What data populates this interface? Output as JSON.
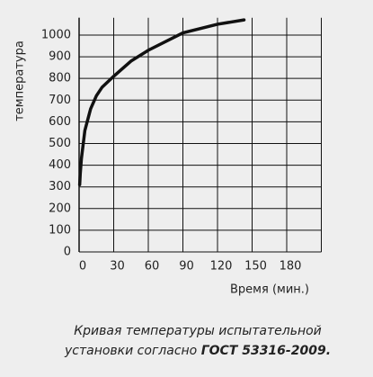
{
  "chart_data": {
    "type": "line",
    "y_label": "температура",
    "x_label": "Время (мин.)",
    "caption": {
      "line1": "Кривая температуры испытательной",
      "line2": "установки согласно ",
      "line2_bold": "ГОСТ 53316-2009."
    },
    "x": [
      0.5,
      1,
      2,
      5,
      10,
      15,
      20,
      30,
      45,
      60,
      90,
      120,
      143
    ],
    "values": [
      310,
      360,
      430,
      560,
      660,
      720,
      760,
      810,
      880,
      930,
      1010,
      1050,
      1070
    ],
    "color": "#111111",
    "xlim": [
      0,
      210
    ],
    "xticks": [
      0,
      30,
      60,
      90,
      120,
      150,
      180
    ],
    "ylim": [
      0,
      1080
    ],
    "yticks": [
      0,
      100,
      200,
      300,
      400,
      500,
      600,
      700,
      800,
      900,
      1000
    ],
    "grid": true
  }
}
